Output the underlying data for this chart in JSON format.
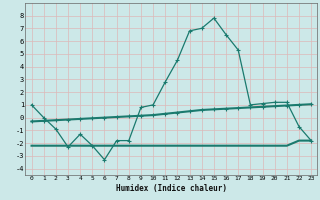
{
  "xlabel": "Humidex (Indice chaleur)",
  "bg_color": "#cce8e8",
  "grid_color": "#e8c8c8",
  "line_color": "#1a7a6e",
  "xlim": [
    -0.5,
    23.5
  ],
  "ylim": [
    -4.5,
    9.0
  ],
  "xticks": [
    0,
    1,
    2,
    3,
    4,
    5,
    6,
    7,
    8,
    9,
    10,
    11,
    12,
    13,
    14,
    15,
    16,
    17,
    18,
    19,
    20,
    21,
    22,
    23
  ],
  "yticks": [
    -4,
    -3,
    -2,
    -1,
    0,
    1,
    2,
    3,
    4,
    5,
    6,
    7,
    8
  ],
  "line1_x": [
    0,
    1,
    2,
    3,
    4,
    5,
    6,
    7,
    8,
    9,
    10,
    11,
    12,
    13,
    14,
    15,
    16,
    17,
    18,
    19,
    20,
    21,
    22,
    23
  ],
  "line1_y": [
    1.0,
    0.0,
    -0.9,
    -2.3,
    -1.3,
    -2.2,
    -3.3,
    -1.8,
    -1.8,
    0.8,
    1.0,
    2.8,
    4.5,
    6.8,
    7.0,
    7.8,
    6.5,
    5.3,
    1.0,
    1.1,
    1.2,
    1.2,
    -0.7,
    -1.8
  ],
  "line2_x": [
    0,
    1,
    2,
    3,
    4,
    5,
    6,
    7,
    8,
    9,
    10,
    11,
    12,
    13,
    14,
    15,
    16,
    17,
    18,
    19,
    20,
    21,
    22,
    23
  ],
  "line2_y": [
    -0.3,
    -0.25,
    -0.2,
    -0.15,
    -0.1,
    -0.05,
    0.0,
    0.05,
    0.1,
    0.15,
    0.2,
    0.3,
    0.4,
    0.5,
    0.6,
    0.65,
    0.7,
    0.75,
    0.8,
    0.85,
    0.9,
    0.95,
    1.0,
    1.05
  ],
  "line3_x": [
    0,
    1,
    2,
    3,
    4,
    5,
    6,
    7,
    8,
    9,
    10,
    11,
    12,
    13,
    14,
    15,
    16,
    17,
    18,
    19,
    20,
    21,
    22,
    23
  ],
  "line3_y": [
    -2.2,
    -2.2,
    -2.2,
    -2.2,
    -2.2,
    -2.2,
    -2.2,
    -2.2,
    -2.2,
    -2.2,
    -2.2,
    -2.2,
    -2.2,
    -2.2,
    -2.2,
    -2.2,
    -2.2,
    -2.2,
    -2.2,
    -2.2,
    -2.2,
    -2.2,
    -1.8,
    -1.8
  ]
}
